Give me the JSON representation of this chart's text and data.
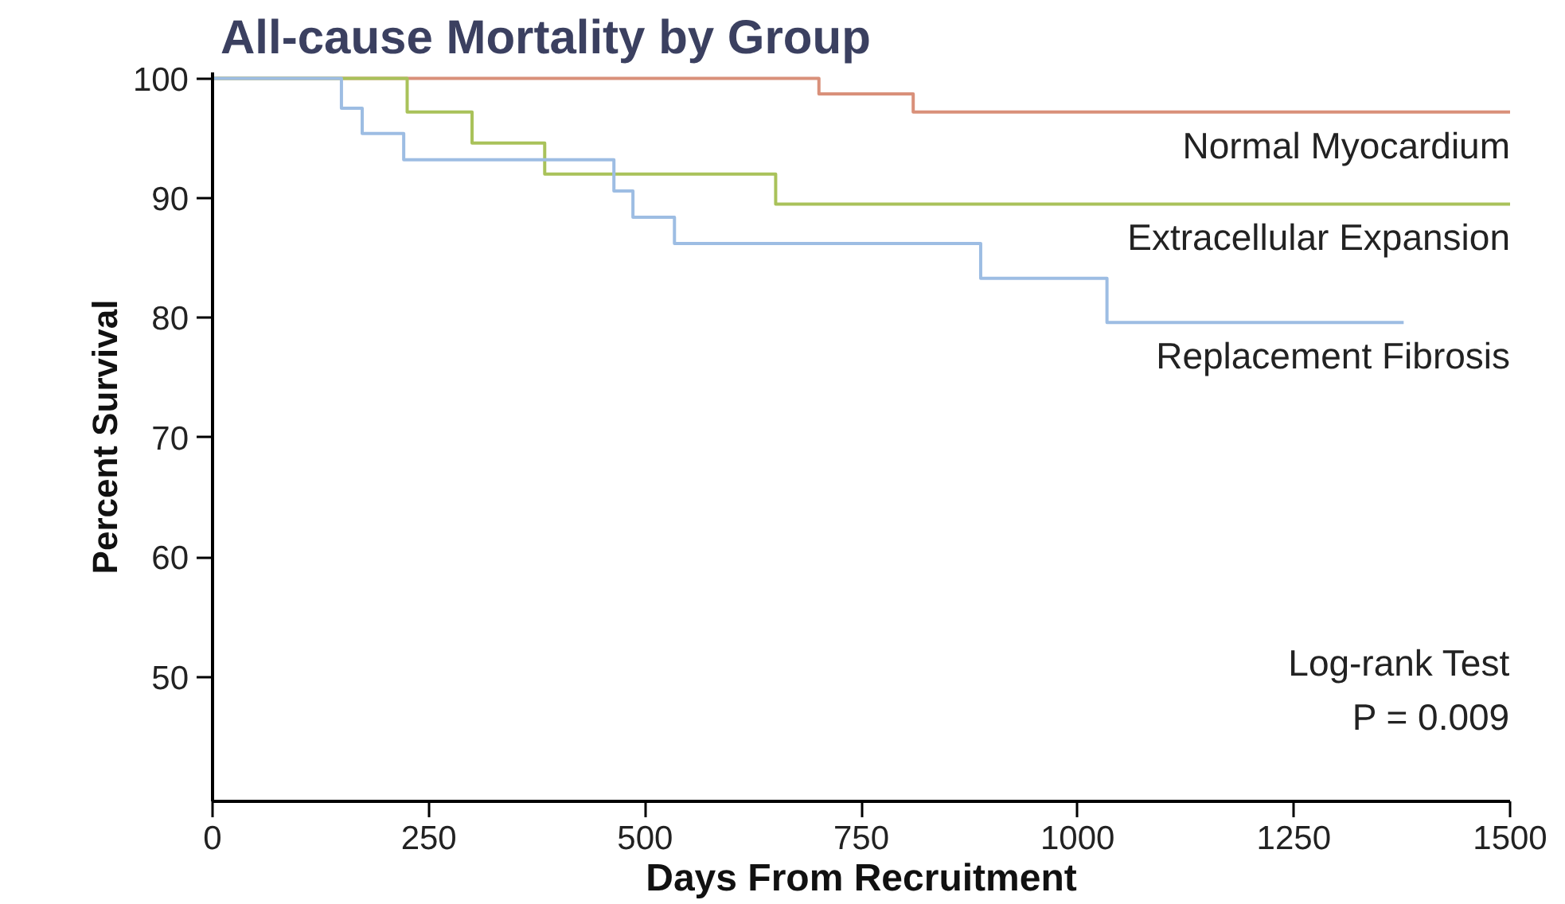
{
  "chart_data": {
    "type": "step",
    "title": "All-cause Mortality by Group",
    "xlabel": "Days From Recruitment",
    "ylabel": "Percent Survival",
    "series": [
      {
        "name": "Normal Myocardium",
        "color": "#d9907a",
        "x": [
          0,
          701,
          810,
          1500
        ],
        "values": [
          100,
          98.7,
          97.2,
          97.2
        ]
      },
      {
        "name": "Extracellular Expansion",
        "color": "#a9c25a",
        "x": [
          0,
          225,
          300,
          384,
          651,
          1500
        ],
        "values": [
          100,
          97.2,
          94.6,
          92.0,
          89.5,
          89.5
        ]
      },
      {
        "name": "Replacement Fibrosis",
        "color": "#9dbde3",
        "x": [
          0,
          149,
          173,
          221,
          464,
          486,
          534,
          888,
          1034,
          1377
        ],
        "values": [
          100,
          97.5,
          95.4,
          93.2,
          90.6,
          88.4,
          86.2,
          83.3,
          79.6,
          79.6
        ]
      }
    ],
    "xlim": [
      0,
      1500
    ],
    "xticks": [
      0,
      250,
      500,
      750,
      1000,
      1250,
      1500
    ],
    "ylim": [
      39.6,
      100.5
    ],
    "yticks": [
      50,
      60,
      70,
      80,
      90,
      100
    ],
    "grid": false,
    "legend": false,
    "annotations": [
      "Log-rank Test",
      "P = 0.009"
    ]
  }
}
